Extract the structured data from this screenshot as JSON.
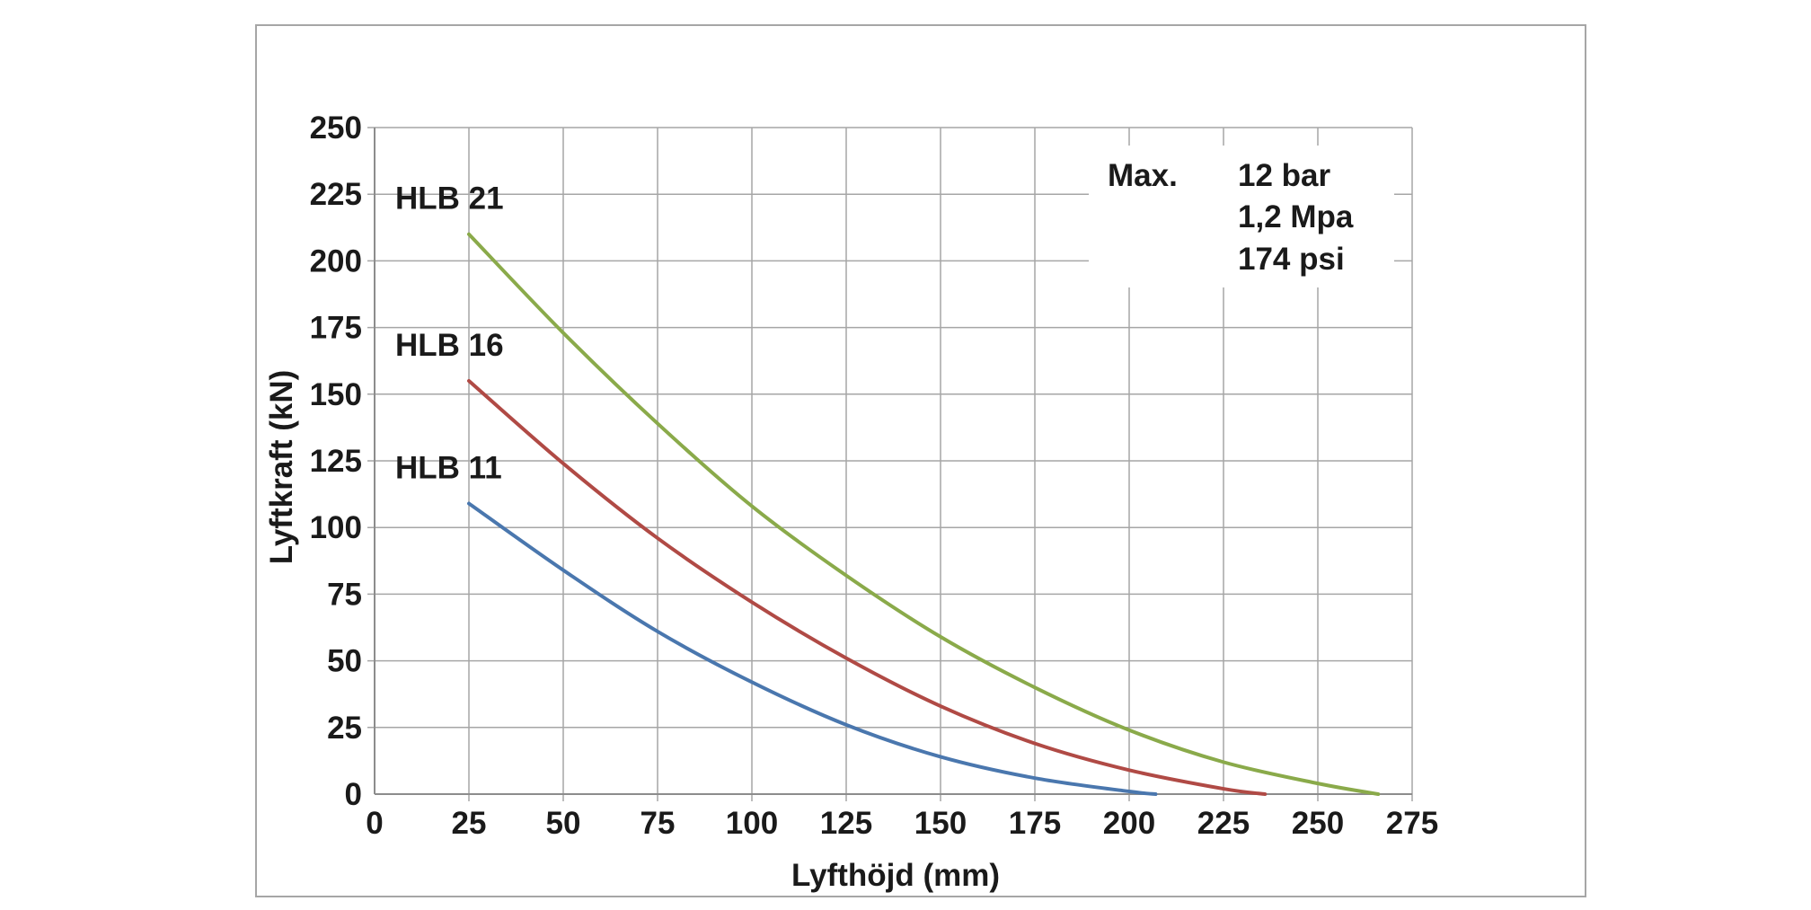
{
  "chart_data": {
    "type": "line",
    "title": "",
    "xlabel": "Lyfthöjd (mm)",
    "ylabel": "Lyftkraft (kN)",
    "xlim": [
      0,
      275
    ],
    "ylim": [
      0,
      250
    ],
    "x_ticks": [
      "0",
      "25",
      "50",
      "75",
      "100",
      "125",
      "150",
      "175",
      "200",
      "225",
      "250",
      "275"
    ],
    "y_ticks": [
      "0",
      "25",
      "50",
      "75",
      "100",
      "125",
      "150",
      "175",
      "200",
      "225",
      "250"
    ],
    "grid": true,
    "legend": "none",
    "series": [
      {
        "name": "HLB 21",
        "color": "#8aaa4a",
        "x": [
          25,
          50,
          75,
          100,
          125,
          150,
          175,
          200,
          225,
          250,
          266
        ],
        "y": [
          210,
          173,
          139,
          108,
          82,
          59,
          40,
          24,
          12,
          4,
          0
        ]
      },
      {
        "name": "HLB 16",
        "color": "#b04a45",
        "x": [
          25,
          50,
          75,
          100,
          125,
          150,
          175,
          200,
          225,
          236
        ],
        "y": [
          155,
          124,
          96,
          72,
          51,
          33,
          19,
          9,
          2,
          0
        ]
      },
      {
        "name": "HLB 11",
        "color": "#4a77ae",
        "x": [
          25,
          50,
          75,
          100,
          125,
          150,
          175,
          200,
          207
        ],
        "y": [
          109,
          84,
          61,
          42,
          26,
          14,
          6,
          1,
          0
        ]
      }
    ],
    "annotation": {
      "label": "Max.",
      "values": [
        "12 bar",
        "1,2 Mpa",
        "174 psi"
      ]
    }
  }
}
